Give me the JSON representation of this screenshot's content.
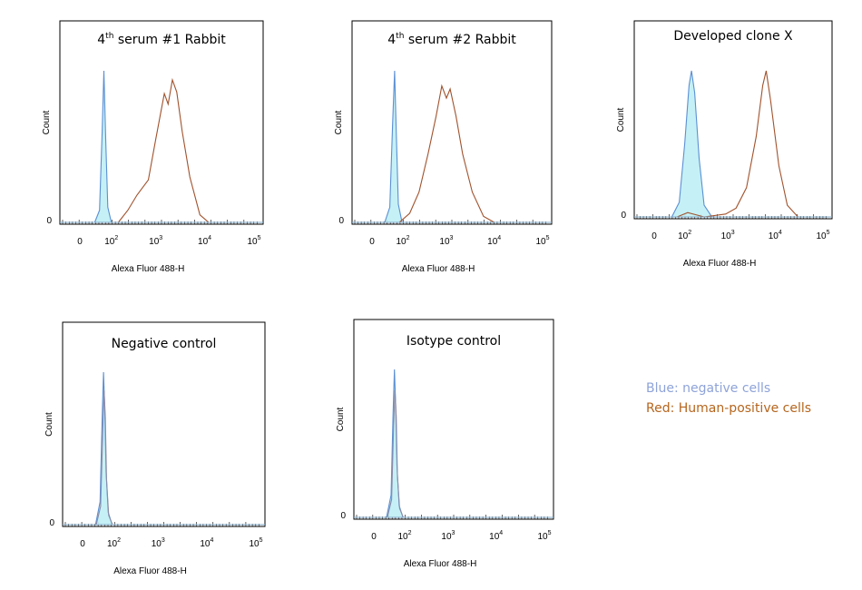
{
  "legend": {
    "blue": {
      "text": "Blue: negative cells",
      "color": "#8EA3D8"
    },
    "red": {
      "text": "Red: Human-positive cells",
      "color": "#B5651D"
    }
  },
  "colors": {
    "negative": "#5B8FD4",
    "negative_fill": "#BFEFF5",
    "positive": "#A0522D",
    "control": "#8C8CA8"
  },
  "axis": {
    "ylabel": "Count",
    "xlabel": "Alexa Fluor 488-H",
    "y_zero": "0",
    "x_zero": "0"
  },
  "chart_data": [
    {
      "type": "histogram",
      "title": "4th serum #1 Rabbit",
      "title_base": "4",
      "title_sup": "th",
      "title_rest": " serum #1 Rabbit",
      "xscale": "biexponential",
      "xticks": [
        "0",
        "10^2",
        "10^3",
        "10^4",
        "10^5"
      ],
      "series": [
        {
          "role": "negative",
          "x": [
            30,
            45,
            55,
            62,
            70,
            80,
            100
          ],
          "y": [
            0,
            8,
            60,
            100,
            55,
            10,
            0
          ]
        },
        {
          "role": "positive",
          "x": [
            150,
            250,
            400,
            700,
            1000,
            1500,
            1800,
            2200,
            2700,
            3500,
            5000,
            8000,
            12000
          ],
          "y": [
            0,
            8,
            18,
            28,
            55,
            85,
            78,
            94,
            86,
            60,
            30,
            5,
            0
          ]
        }
      ]
    },
    {
      "type": "histogram",
      "title": "4th serum #2 Rabbit",
      "title_base": "4",
      "title_sup": "th",
      "title_rest": " serum #2 Rabbit",
      "xscale": "biexponential",
      "xticks": [
        "0",
        "10^2",
        "10^3",
        "10^4",
        "10^5"
      ],
      "series": [
        {
          "role": "negative",
          "x": [
            25,
            40,
            50,
            58,
            65,
            75,
            95
          ],
          "y": [
            0,
            10,
            65,
            100,
            60,
            12,
            0
          ]
        },
        {
          "role": "positive",
          "x": [
            80,
            150,
            250,
            400,
            600,
            800,
            1000,
            1200,
            1600,
            2200,
            3500,
            6000,
            10000
          ],
          "y": [
            0,
            6,
            20,
            45,
            70,
            90,
            82,
            88,
            70,
            45,
            20,
            4,
            0
          ]
        }
      ]
    },
    {
      "type": "histogram",
      "title": "Developed clone X",
      "xscale": "biexponential",
      "xticks": [
        "0",
        "10^2",
        "10^3",
        "10^4",
        "10^5"
      ],
      "series": [
        {
          "role": "negative",
          "x": [
            40,
            70,
            100,
            130,
            150,
            180,
            230,
            300,
            450
          ],
          "y": [
            0,
            10,
            50,
            90,
            100,
            85,
            40,
            8,
            0
          ]
        },
        {
          "role": "positive",
          "x": [
            60,
            120,
            300,
            900,
            1500,
            2500,
            4000,
            5500,
            6500,
            8000,
            12000,
            18000,
            30000
          ],
          "y": [
            0,
            3,
            0,
            2,
            6,
            20,
            55,
            90,
            100,
            80,
            35,
            8,
            0
          ]
        }
      ]
    },
    {
      "type": "histogram",
      "title": "Negative control",
      "xscale": "biexponential",
      "xticks": [
        "0",
        "10^2",
        "10^3",
        "10^4",
        "10^5"
      ],
      "series": [
        {
          "role": "negative",
          "x": [
            25,
            38,
            45,
            50,
            55,
            60,
            70,
            90
          ],
          "y": [
            0,
            15,
            70,
            100,
            75,
            35,
            8,
            0
          ]
        },
        {
          "role": "control",
          "x": [
            27,
            40,
            47,
            52,
            57,
            62,
            72,
            92
          ],
          "y": [
            0,
            12,
            60,
            88,
            70,
            30,
            6,
            0
          ]
        }
      ]
    },
    {
      "type": "histogram",
      "title": "Isotype control",
      "xscale": "biexponential",
      "xticks": [
        "0",
        "10^2",
        "10^3",
        "10^4",
        "10^5"
      ],
      "series": [
        {
          "role": "negative",
          "x": [
            25,
            38,
            45,
            50,
            55,
            60,
            70,
            90
          ],
          "y": [
            0,
            15,
            70,
            100,
            75,
            35,
            8,
            0
          ]
        },
        {
          "role": "control",
          "x": [
            27,
            40,
            47,
            52,
            57,
            62,
            72,
            92
          ],
          "y": [
            0,
            12,
            62,
            86,
            68,
            28,
            6,
            0
          ]
        }
      ]
    }
  ]
}
